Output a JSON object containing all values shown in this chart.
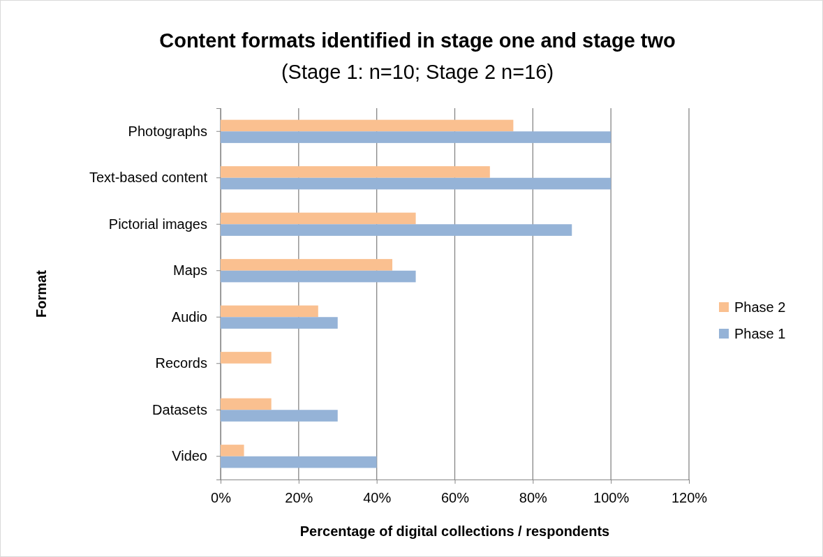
{
  "chart_data": {
    "type": "bar",
    "orientation": "horizontal",
    "title": "Content formats identified in stage one and stage two",
    "subtitle": "(Stage 1: n=10; Stage 2 n=16)",
    "xlabel": "Percentage of digital collections / respondents",
    "ylabel": "Format",
    "categories": [
      "Photographs",
      "Text-based content",
      "Pictorial images",
      "Maps",
      "Audio",
      "Records",
      "Datasets",
      "Video"
    ],
    "series": [
      {
        "name": "Phase 2",
        "color": "#fac090",
        "values": [
          75,
          69,
          50,
          44,
          25,
          13,
          13,
          6
        ]
      },
      {
        "name": "Phase 1",
        "color": "#95b3d7",
        "values": [
          100,
          100,
          90,
          50,
          30,
          0,
          30,
          40
        ]
      }
    ],
    "xlim": [
      0,
      120
    ],
    "xticks": [
      {
        "value": 0,
        "label": "0%"
      },
      {
        "value": 20,
        "label": "20%"
      },
      {
        "value": 40,
        "label": "40%"
      },
      {
        "value": 60,
        "label": "60%"
      },
      {
        "value": 80,
        "label": "80%"
      },
      {
        "value": 100,
        "label": "100%"
      },
      {
        "value": 120,
        "label": "120%"
      }
    ],
    "grid": "x",
    "legend": "right"
  }
}
